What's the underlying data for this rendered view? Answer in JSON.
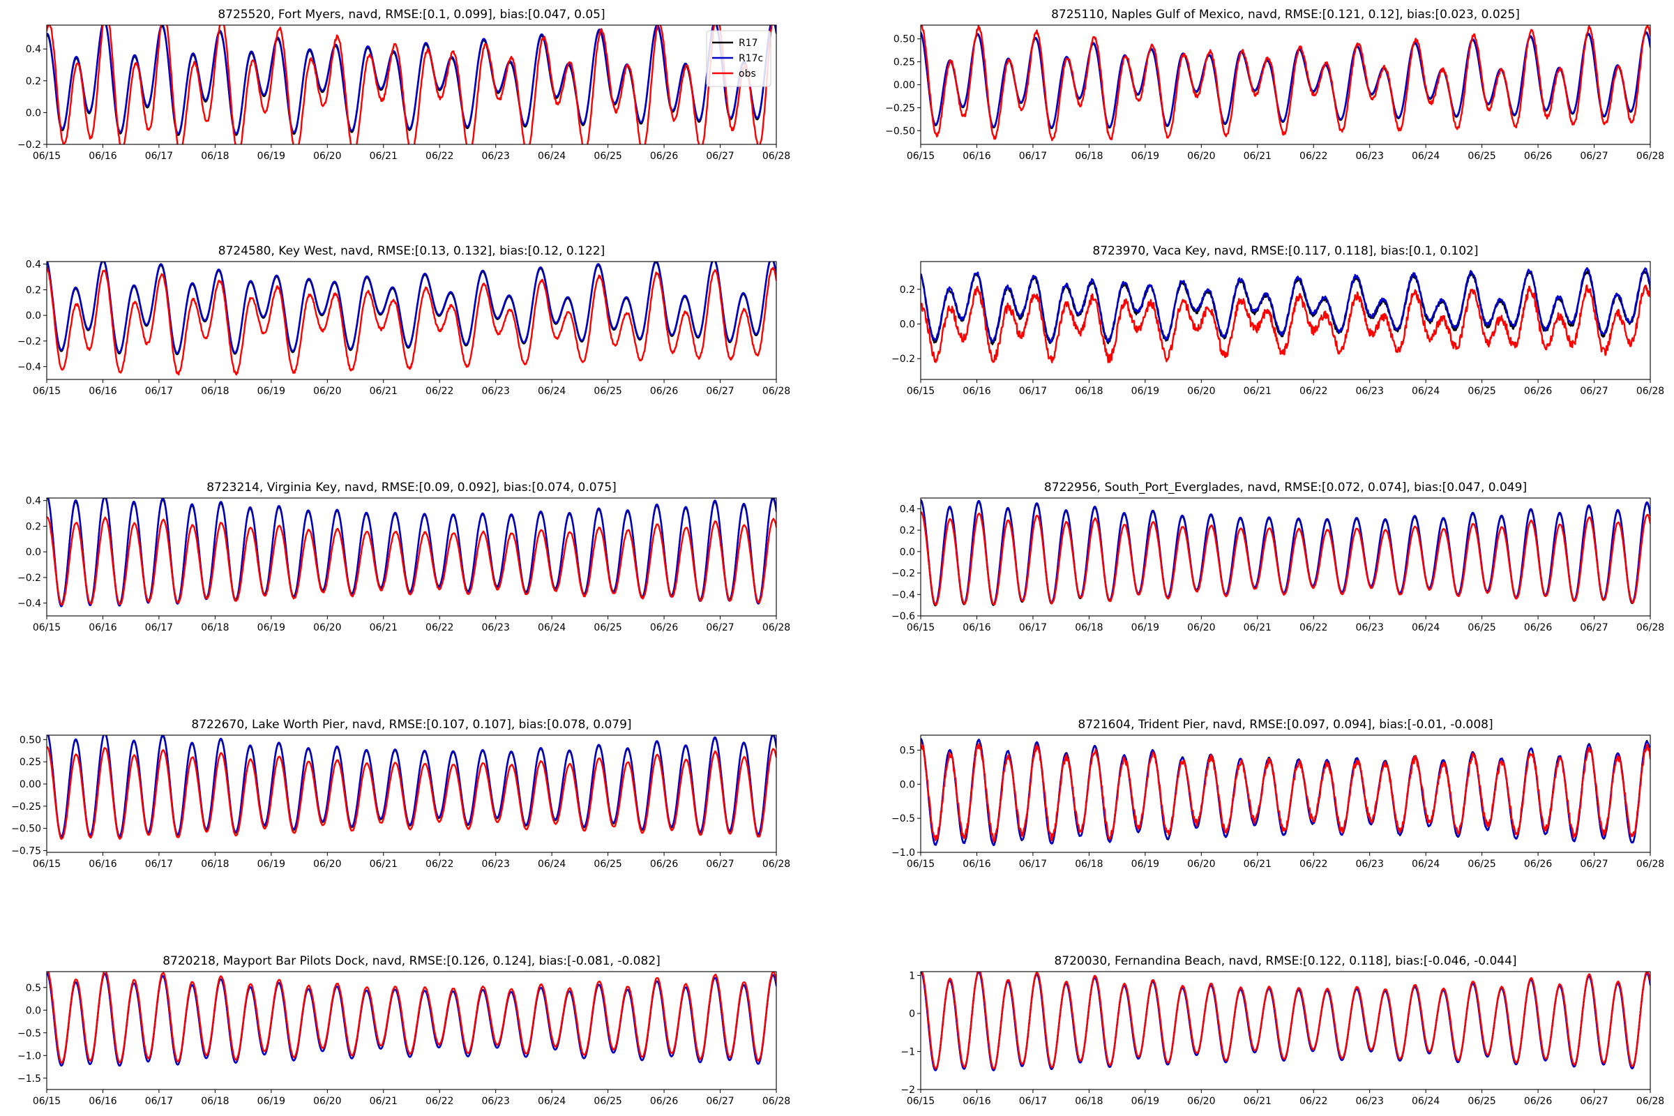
{
  "colors": {
    "R17": "#000000",
    "R17c": "#0000cc",
    "obs": "#ff0000"
  },
  "chart_data": [
    {
      "type": "line",
      "title": "8725520, Fort Myers, navd, RMSE:[0.1, 0.099], bias:[0.047, 0.05]",
      "x_ticks": [
        "06/15",
        "06/16",
        "06/17",
        "06/18",
        "06/19",
        "06/20",
        "06/21",
        "06/22",
        "06/23",
        "06/24",
        "06/25",
        "06/26",
        "06/27",
        "06/28"
      ],
      "y_ticks": [
        "−0.2",
        "0.0",
        "0.2",
        "0.4"
      ],
      "y_tick_values": [
        -0.2,
        0,
        0.2,
        0.4
      ],
      "ylim": [
        -0.2,
        0.55
      ],
      "legend": {
        "placement": "top-right",
        "entries": [
          "R17",
          "R17c",
          "obs"
        ]
      },
      "series": [
        {
          "name": "R17",
          "mean": 0.2,
          "amp": [
            0.22,
            0.13
          ],
          "phase": [
            0.0,
            0.3
          ],
          "noise": 0,
          "start_offset": -0.1
        },
        {
          "name": "R17c",
          "mean": 0.21,
          "amp": [
            0.22,
            0.13
          ],
          "phase": [
            0.0,
            0.3
          ],
          "noise": 0,
          "start_offset": -0.1
        },
        {
          "name": "obs",
          "mean": 0.15,
          "amp": [
            0.28,
            0.17
          ],
          "phase": [
            -0.35,
            -0.2
          ],
          "noise": 0.01,
          "start_offset": -0.12
        }
      ],
      "grow": 0.0,
      "decay": 0.0
    },
    {
      "type": "line",
      "title": "8725110, Naples Gulf of Mexico, navd, RMSE:[0.121, 0.12], bias:[0.023, 0.025]",
      "x_ticks": [
        "06/15",
        "06/16",
        "06/17",
        "06/18",
        "06/19",
        "06/20",
        "06/21",
        "06/22",
        "06/23",
        "06/24",
        "06/25",
        "06/26",
        "06/27",
        "06/28"
      ],
      "y_ticks": [
        "−0.50",
        "−0.25",
        "0.00",
        "0.25",
        "0.50"
      ],
      "y_tick_values": [
        -0.5,
        -0.25,
        0,
        0.25,
        0.5
      ],
      "ylim": [
        -0.65,
        0.65
      ],
      "series": [
        {
          "name": "R17",
          "mean": 0.03,
          "amp": [
            0.32,
            0.18
          ],
          "phase": [
            0.1,
            0.5
          ],
          "noise": 0,
          "start_offset": 0
        },
        {
          "name": "R17c",
          "mean": 0.04,
          "amp": [
            0.32,
            0.18
          ],
          "phase": [
            0.1,
            0.5
          ],
          "noise": 0,
          "start_offset": 0
        },
        {
          "name": "obs",
          "mean": 0.0,
          "amp": [
            0.38,
            0.22
          ],
          "phase": [
            -0.1,
            0.3
          ],
          "noise": 0.02,
          "start_offset": 0
        }
      ]
    },
    {
      "type": "line",
      "title": "8724580, Key West, navd, RMSE:[0.13, 0.132], bias:[0.12, 0.122]",
      "x_ticks": [
        "06/15",
        "06/16",
        "06/17",
        "06/18",
        "06/19",
        "06/20",
        "06/21",
        "06/22",
        "06/23",
        "06/24",
        "06/25",
        "06/26",
        "06/27",
        "06/28"
      ],
      "y_ticks": [
        "−0.4",
        "−0.2",
        "0.0",
        "0.2",
        "0.4"
      ],
      "y_tick_values": [
        -0.4,
        -0.2,
        0,
        0.2,
        0.4
      ],
      "ylim": [
        -0.5,
        0.42
      ],
      "series": [
        {
          "name": "R17",
          "mean": 0.06,
          "amp": [
            0.22,
            0.14
          ],
          "phase": [
            0.2,
            0.6
          ],
          "noise": 0,
          "start_offset": 0
        },
        {
          "name": "R17c",
          "mean": 0.07,
          "amp": [
            0.22,
            0.14
          ],
          "phase": [
            0.2,
            0.6
          ],
          "noise": 0,
          "start_offset": 0
        },
        {
          "name": "obs",
          "mean": -0.06,
          "amp": [
            0.24,
            0.16
          ],
          "phase": [
            0.0,
            0.4
          ],
          "noise": 0.01,
          "start_offset": 0
        }
      ]
    },
    {
      "type": "line",
      "title": "8723970, Vaca Key, navd, RMSE:[0.117, 0.118], bias:[0.1, 0.102]",
      "x_ticks": [
        "06/15",
        "06/16",
        "06/17",
        "06/18",
        "06/19",
        "06/20",
        "06/21",
        "06/22",
        "06/23",
        "06/24",
        "06/25",
        "06/26",
        "06/27",
        "06/28"
      ],
      "y_ticks": [
        "−0.2",
        "0.0",
        "0.2"
      ],
      "y_tick_values": [
        -0.2,
        0,
        0.2
      ],
      "ylim": [
        -0.32,
        0.36
      ],
      "series": [
        {
          "name": "R17",
          "mean": 0.1,
          "amp": [
            0.12,
            0.08
          ],
          "phase": [
            0.3,
            0.9
          ],
          "noise": 0.01,
          "start_offset": 0
        },
        {
          "name": "R17c",
          "mean": 0.11,
          "amp": [
            0.12,
            0.08
          ],
          "phase": [
            0.3,
            0.9
          ],
          "noise": 0.01,
          "start_offset": 0
        },
        {
          "name": "obs",
          "mean": 0.0,
          "amp": [
            0.12,
            0.08
          ],
          "phase": [
            0.1,
            0.7
          ],
          "noise": 0.025,
          "start_offset": -0.1
        }
      ]
    },
    {
      "type": "line",
      "title": "8723214, Virginia Key, navd, RMSE:[0.09, 0.092], bias:[0.074, 0.075]",
      "x_ticks": [
        "06/15",
        "06/16",
        "06/17",
        "06/18",
        "06/19",
        "06/20",
        "06/21",
        "06/22",
        "06/23",
        "06/24",
        "06/25",
        "06/26",
        "06/27",
        "06/28"
      ],
      "y_ticks": [
        "−0.4",
        "−0.2",
        "0.0",
        "0.2",
        "0.4"
      ],
      "y_tick_values": [
        -0.4,
        -0.2,
        0,
        0.2,
        0.4
      ],
      "ylim": [
        -0.5,
        0.42
      ],
      "series": [
        {
          "name": "R17",
          "mean": 0.0,
          "amp": [
            0.35,
            0.02
          ],
          "phase": [
            0.0,
            0
          ],
          "noise": 0,
          "start_offset": 0
        },
        {
          "name": "R17c",
          "mean": 0.0,
          "amp": [
            0.36,
            0.02
          ],
          "phase": [
            0.0,
            0
          ],
          "noise": 0,
          "start_offset": 0
        },
        {
          "name": "obs",
          "mean": -0.08,
          "amp": [
            0.28,
            0.02
          ],
          "phase": [
            -0.1,
            0
          ],
          "noise": 0.005,
          "start_offset": 0
        }
      ]
    },
    {
      "type": "line",
      "title": "8722956, South_Port_Everglades, navd, RMSE:[0.072, 0.074], bias:[0.047, 0.049]",
      "x_ticks": [
        "06/15",
        "06/16",
        "06/17",
        "06/18",
        "06/19",
        "06/20",
        "06/21",
        "06/22",
        "06/23",
        "06/24",
        "06/25",
        "06/26",
        "06/27",
        "06/28"
      ],
      "y_ticks": [
        "−0.6",
        "−0.4",
        "−0.2",
        "0.0",
        "0.2",
        "0.4"
      ],
      "y_tick_values": [
        -0.6,
        -0.4,
        -0.2,
        0,
        0.2,
        0.4
      ],
      "ylim": [
        -0.6,
        0.5
      ],
      "series": [
        {
          "name": "R17",
          "mean": -0.03,
          "amp": [
            0.4,
            0.03
          ],
          "phase": [
            0.0,
            0
          ],
          "noise": 0,
          "start_offset": 0
        },
        {
          "name": "R17c",
          "mean": -0.02,
          "amp": [
            0.4,
            0.03
          ],
          "phase": [
            0.0,
            0
          ],
          "noise": 0,
          "start_offset": 0
        },
        {
          "name": "obs",
          "mean": -0.08,
          "amp": [
            0.35,
            0.03
          ],
          "phase": [
            -0.08,
            0
          ],
          "noise": 0.005,
          "start_offset": 0
        }
      ]
    },
    {
      "type": "line",
      "title": "8722670, Lake Worth Pier, navd, RMSE:[0.107, 0.107], bias:[0.078, 0.079]",
      "x_ticks": [
        "06/15",
        "06/16",
        "06/17",
        "06/18",
        "06/19",
        "06/20",
        "06/21",
        "06/22",
        "06/23",
        "06/24",
        "06/25",
        "06/26",
        "06/27",
        "06/28"
      ],
      "y_ticks": [
        "−0.75",
        "−0.50",
        "−0.25",
        "0.00",
        "0.25",
        "0.50"
      ],
      "y_tick_values": [
        -0.75,
        -0.5,
        -0.25,
        0,
        0.25,
        0.5
      ],
      "ylim": [
        -0.77,
        0.55
      ],
      "series": [
        {
          "name": "R17",
          "mean": -0.03,
          "amp": [
            0.48,
            0.04
          ],
          "phase": [
            0.0,
            0
          ],
          "noise": 0,
          "start_offset": 0
        },
        {
          "name": "R17c",
          "mean": -0.02,
          "amp": [
            0.48,
            0.04
          ],
          "phase": [
            0.0,
            0
          ],
          "noise": 0,
          "start_offset": 0
        },
        {
          "name": "obs",
          "mean": -0.12,
          "amp": [
            0.42,
            0.04
          ],
          "phase": [
            -0.08,
            0
          ],
          "noise": 0.005,
          "start_offset": 0
        }
      ]
    },
    {
      "type": "line",
      "title": "8721604, Trident Pier, navd, RMSE:[0.097, 0.094], bias:[-0.01, -0.008]",
      "x_ticks": [
        "06/15",
        "06/16",
        "06/17",
        "06/18",
        "06/19",
        "06/20",
        "06/21",
        "06/22",
        "06/23",
        "06/24",
        "06/25",
        "06/26",
        "06/27",
        "06/28"
      ],
      "y_ticks": [
        "−1.0",
        "−0.5",
        "0.0",
        "0.5"
      ],
      "y_tick_values": [
        -1.0,
        -0.5,
        0,
        0.5
      ],
      "ylim": [
        -1.0,
        0.72
      ],
      "series": [
        {
          "name": "R17",
          "mean": -0.15,
          "amp": [
            0.62,
            0.08
          ],
          "phase": [
            0.0,
            0
          ],
          "noise": 0.01,
          "start_offset": 0
        },
        {
          "name": "R17c",
          "mean": -0.15,
          "amp": [
            0.62,
            0.08
          ],
          "phase": [
            0.0,
            0
          ],
          "noise": 0.01,
          "start_offset": 0
        },
        {
          "name": "obs",
          "mean": -0.14,
          "amp": [
            0.55,
            0.08
          ],
          "phase": [
            -0.05,
            0
          ],
          "noise": 0.05,
          "start_offset": 0
        }
      ]
    },
    {
      "type": "line",
      "title": "8720218, Mayport Bar Pilots Dock, navd, RMSE:[0.126, 0.124], bias:[-0.081, -0.082]",
      "x_ticks": [
        "06/15",
        "06/16",
        "06/17",
        "06/18",
        "06/19",
        "06/20",
        "06/21",
        "06/22",
        "06/23",
        "06/24",
        "06/25",
        "06/26",
        "06/27",
        "06/28"
      ],
      "y_ticks": [
        "−1.5",
        "−1.0",
        "−0.5",
        "0.0",
        "0.5"
      ],
      "y_tick_values": [
        -1.5,
        -1.0,
        -0.5,
        0,
        0.5
      ],
      "ylim": [
        -1.75,
        0.85
      ],
      "series": [
        {
          "name": "R17",
          "mean": -0.25,
          "amp": [
            0.82,
            0.1
          ],
          "phase": [
            0.0,
            0
          ],
          "noise": 0,
          "start_offset": 0
        },
        {
          "name": "R17c",
          "mean": -0.25,
          "amp": [
            0.82,
            0.1
          ],
          "phase": [
            0.0,
            0
          ],
          "noise": 0,
          "start_offset": 0
        },
        {
          "name": "obs",
          "mean": -0.18,
          "amp": [
            0.82,
            0.1
          ],
          "phase": [
            -0.05,
            0
          ],
          "noise": 0.01,
          "start_offset": 0
        }
      ]
    },
    {
      "type": "line",
      "title": "8720030, Fernandina Beach, navd, RMSE:[0.122, 0.118], bias:[-0.046, -0.044]",
      "x_ticks": [
        "06/15",
        "06/16",
        "06/17",
        "06/18",
        "06/19",
        "06/20",
        "06/21",
        "06/22",
        "06/23",
        "06/24",
        "06/25",
        "06/26",
        "06/27",
        "06/28"
      ],
      "y_ticks": [
        "−2",
        "−1",
        "0",
        "1"
      ],
      "y_tick_values": [
        -2,
        -1,
        0,
        1
      ],
      "ylim": [
        -2.0,
        1.1
      ],
      "series": [
        {
          "name": "R17",
          "mean": -0.25,
          "amp": [
            1.05,
            0.12
          ],
          "phase": [
            0.0,
            0
          ],
          "noise": 0,
          "start_offset": 0
        },
        {
          "name": "R17c",
          "mean": -0.25,
          "amp": [
            1.05,
            0.12
          ],
          "phase": [
            0.0,
            0
          ],
          "noise": 0,
          "start_offset": 0
        },
        {
          "name": "obs",
          "mean": -0.2,
          "amp": [
            1.05,
            0.12
          ],
          "phase": [
            -0.05,
            0
          ],
          "noise": 0.01,
          "start_offset": 0
        }
      ]
    }
  ]
}
